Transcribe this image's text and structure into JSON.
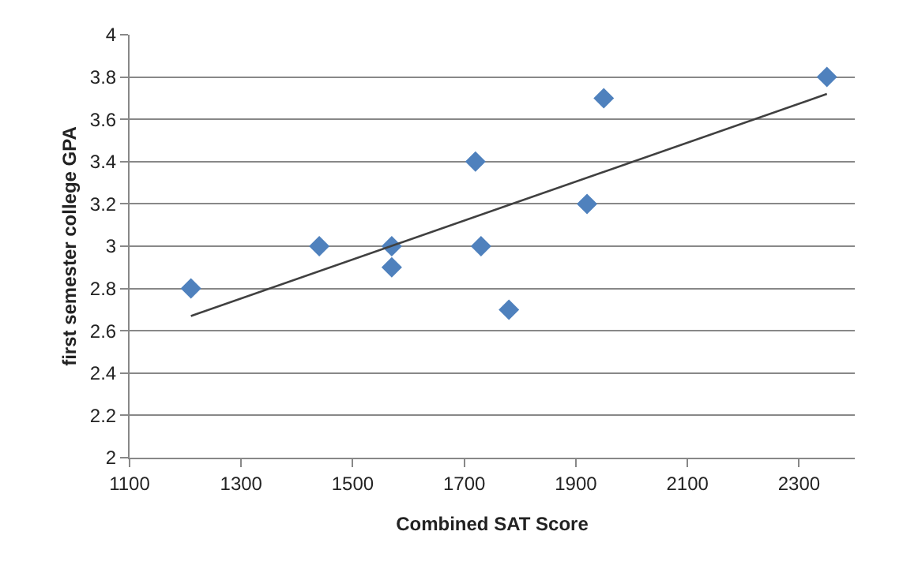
{
  "chart_data": {
    "type": "scatter",
    "xlabel": "Combined SAT Score",
    "ylabel": "first semester college GPA",
    "xlim": [
      1100,
      2400
    ],
    "xticks": [
      1100,
      1300,
      1500,
      1700,
      1900,
      2100,
      2300
    ],
    "ylim": [
      2,
      4
    ],
    "yticks": [
      2,
      2.2,
      2.4,
      2.6,
      2.8,
      3,
      3.2,
      3.4,
      3.6,
      3.8,
      4
    ],
    "grid": "y",
    "series": [
      {
        "marker": "diamond",
        "color": "#4f81bd",
        "x": [
          1210,
          1440,
          1570,
          1570,
          1720,
          1730,
          1780,
          1920,
          1950,
          2350
        ],
        "values": [
          2.8,
          3.0,
          3.0,
          2.9,
          3.4,
          3.0,
          2.7,
          3.2,
          3.7,
          3.8
        ]
      },
      {
        "type": "line",
        "color": "#404040",
        "x": [
          1210,
          2350
        ],
        "values": [
          2.67,
          3.72
        ]
      }
    ]
  }
}
